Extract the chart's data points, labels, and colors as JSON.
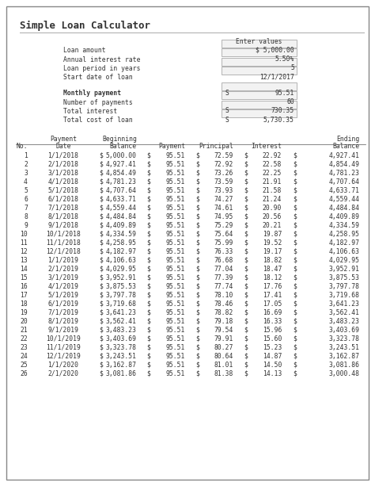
{
  "title": "Simple Loan Calculator",
  "input_header": "Enter values",
  "input_labels": [
    "Loan amount",
    "Annual interest rate",
    "Loan period in years",
    "Start date of loan"
  ],
  "input_values": [
    "$ 5,000.00",
    "5.50%",
    "5",
    "12/1/2017"
  ],
  "input_has_dollar": [
    true,
    false,
    false,
    false
  ],
  "output_labels": [
    "Monthly payment",
    "Number of payments",
    "Total interest",
    "Total cost of loan"
  ],
  "output_values": [
    "95.51",
    "60",
    "730.35",
    "5,730.35"
  ],
  "output_has_dollar": [
    true,
    false,
    true,
    true
  ],
  "output_bold": [
    true,
    false,
    false,
    false
  ],
  "rows": [
    [
      1,
      "1/1/2018",
      "5,000.00",
      "95.51",
      "72.59",
      "22.92",
      "4,927.41"
    ],
    [
      2,
      "2/1/2018",
      "4,927.41",
      "95.51",
      "72.92",
      "22.58",
      "4,854.49"
    ],
    [
      3,
      "3/1/2018",
      "4,854.49",
      "95.51",
      "73.26",
      "22.25",
      "4,781.23"
    ],
    [
      4,
      "4/1/2018",
      "4,781.23",
      "95.51",
      "73.59",
      "21.91",
      "4,707.64"
    ],
    [
      5,
      "5/1/2018",
      "4,707.64",
      "95.51",
      "73.93",
      "21.58",
      "4,633.71"
    ],
    [
      6,
      "6/1/2018",
      "4,633.71",
      "95.51",
      "74.27",
      "21.24",
      "4,559.44"
    ],
    [
      7,
      "7/1/2018",
      "4,559.44",
      "95.51",
      "74.61",
      "20.90",
      "4,484.84"
    ],
    [
      8,
      "8/1/2018",
      "4,484.84",
      "95.51",
      "74.95",
      "20.56",
      "4,409.89"
    ],
    [
      9,
      "9/1/2018",
      "4,409.89",
      "95.51",
      "75.29",
      "20.21",
      "4,334.59"
    ],
    [
      10,
      "10/1/2018",
      "4,334.59",
      "95.51",
      "75.64",
      "19.87",
      "4,258.95"
    ],
    [
      11,
      "11/1/2018",
      "4,258.95",
      "95.51",
      "75.99",
      "19.52",
      "4,182.97"
    ],
    [
      12,
      "12/1/2018",
      "4,182.97",
      "95.51",
      "76.33",
      "19.17",
      "4,106.63"
    ],
    [
      13,
      "1/1/2019",
      "4,106.63",
      "95.51",
      "76.68",
      "18.82",
      "4,029.95"
    ],
    [
      14,
      "2/1/2019",
      "4,029.95",
      "95.51",
      "77.04",
      "18.47",
      "3,952.91"
    ],
    [
      15,
      "3/1/2019",
      "3,952.91",
      "95.51",
      "77.39",
      "18.12",
      "3,875.53"
    ],
    [
      16,
      "4/1/2019",
      "3,875.53",
      "95.51",
      "77.74",
      "17.76",
      "3,797.78"
    ],
    [
      17,
      "5/1/2019",
      "3,797.78",
      "95.51",
      "78.10",
      "17.41",
      "3,719.68"
    ],
    [
      18,
      "6/1/2019",
      "3,719.68",
      "95.51",
      "78.46",
      "17.05",
      "3,641.23"
    ],
    [
      19,
      "7/1/2019",
      "3,641.23",
      "95.51",
      "78.82",
      "16.69",
      "3,562.41"
    ],
    [
      20,
      "8/1/2019",
      "3,562.41",
      "95.51",
      "79.18",
      "16.33",
      "3,483.23"
    ],
    [
      21,
      "9/1/2019",
      "3,483.23",
      "95.51",
      "79.54",
      "15.96",
      "3,403.69"
    ],
    [
      22,
      "10/1/2019",
      "3,403.69",
      "95.51",
      "79.91",
      "15.60",
      "3,323.78"
    ],
    [
      23,
      "11/1/2019",
      "3,323.78",
      "95.51",
      "80.27",
      "15.23",
      "3,243.51"
    ],
    [
      24,
      "12/1/2019",
      "3,243.51",
      "95.51",
      "80.64",
      "14.87",
      "3,162.87"
    ],
    [
      25,
      "1/1/2020",
      "3,162.87",
      "95.51",
      "81.01",
      "14.50",
      "3,081.86"
    ],
    [
      26,
      "2/1/2020",
      "3,081.86",
      "95.51",
      "81.38",
      "14.13",
      "3,000.48"
    ]
  ],
  "bg_color": "#ffffff",
  "border_color": "#888888",
  "text_color": "#333333",
  "font_size": 5.8,
  "title_font_size": 9.0
}
